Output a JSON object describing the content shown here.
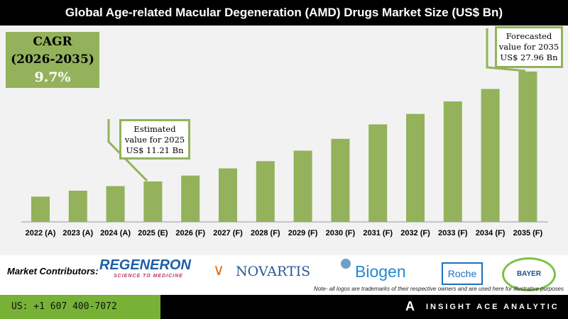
{
  "title": "Global Age-related Macular Degeneration (AMD) Drugs Market Size (US$ Bn)",
  "cagr": {
    "label": "CAGR",
    "period": "(2026-2035)",
    "value": "9.7%"
  },
  "callouts": [
    {
      "l1": "Estimated",
      "l2": "value for 2025",
      "l3": "US$ 11.21 Bn"
    },
    {
      "l1": "Forecasted",
      "l2": "value for 2035",
      "l3": "US$ 27.96 Bn"
    }
  ],
  "chart_data": {
    "type": "bar",
    "title": "Global Age-related Macular Degeneration (AMD) Drugs Market Size (US$ Bn)",
    "categories": [
      "2022 (A)",
      "2023 (A)",
      "2024 (A)",
      "2025 (E)",
      "2026 (F)",
      "2027 (F)",
      "2028 (F)",
      "2029 (F)",
      "2030 (F)",
      "2031 (F)",
      "2032 (F)",
      "2033 (F)",
      "2034 (F)",
      "2035 (F)"
    ],
    "values": [
      8.9,
      9.8,
      10.5,
      11.21,
      12.1,
      13.2,
      14.3,
      15.9,
      17.7,
      19.9,
      21.5,
      23.4,
      25.3,
      27.96
    ],
    "bar_color": "#93b25b",
    "grid": false
  },
  "contributors": {
    "label": "Market Contributors:",
    "logos": [
      "REGENERON",
      "SCIENCE TO MEDICINE",
      "NOVARTIS",
      "Biogen",
      "Roche",
      "BAYER"
    ],
    "note": "Note- all logos are trademarks of their respective owners and are used here for illustrative purposes"
  },
  "footer": {
    "phone": "US: +1 607 400-7072",
    "brand": "INSIGHT ACE ANALYTIC"
  }
}
